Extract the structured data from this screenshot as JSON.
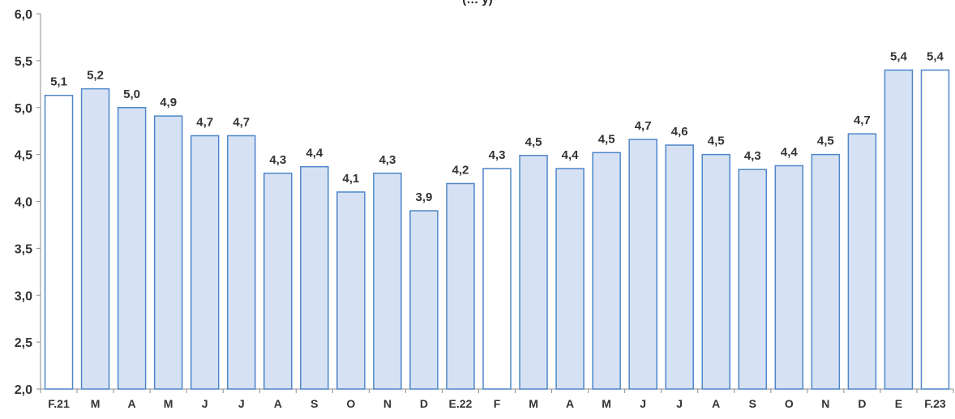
{
  "chart_data": {
    "type": "bar",
    "title": "(… y)",
    "categories": [
      "F.21",
      "M",
      "A",
      "M",
      "J",
      "J",
      "A",
      "S",
      "O",
      "N",
      "D",
      "E.22",
      "F",
      "M",
      "A",
      "M",
      "J",
      "J",
      "A",
      "S",
      "O",
      "N",
      "D",
      "E",
      "F.23"
    ],
    "values": [
      5.13,
      5.2,
      5.0,
      4.91,
      4.7,
      4.7,
      4.3,
      4.37,
      4.1,
      4.3,
      3.9,
      4.19,
      4.35,
      4.49,
      4.35,
      4.52,
      4.66,
      4.6,
      4.5,
      4.34,
      4.38,
      4.5,
      4.72,
      5.4,
      5.4
    ],
    "data_labels": [
      "5,1",
      "5,2",
      "5,0",
      "4,9",
      "4,7",
      "4,7",
      "4,3",
      "4,4",
      "4,1",
      "4,3",
      "3,9",
      "4,2",
      "4,3",
      "4,5",
      "4,4",
      "4,5",
      "4,7",
      "4,6",
      "4,5",
      "4,3",
      "4,4",
      "4,5",
      "4,7",
      "5,4",
      "5,4"
    ],
    "highlighted": [
      true,
      false,
      false,
      false,
      false,
      false,
      false,
      false,
      false,
      false,
      false,
      false,
      true,
      false,
      false,
      false,
      false,
      false,
      false,
      false,
      false,
      false,
      false,
      false,
      true
    ],
    "ylim": [
      2.0,
      6.0
    ],
    "yticks": [
      2.0,
      2.5,
      3.0,
      3.5,
      4.0,
      4.5,
      5.0,
      5.5,
      6.0
    ],
    "ytick_labels": [
      "2,0",
      "2,5",
      "3,0",
      "3,5",
      "4,0",
      "4,5",
      "5,0",
      "5,5",
      "6,0"
    ],
    "xlabel": "",
    "ylabel": "",
    "grid": false,
    "colors": {
      "bar_fill": "#d6e2f4",
      "highlight_fill": "#ffffff",
      "bar_stroke": "#4f86c9",
      "axis": "#8c8c8c",
      "text": "#333333"
    }
  }
}
